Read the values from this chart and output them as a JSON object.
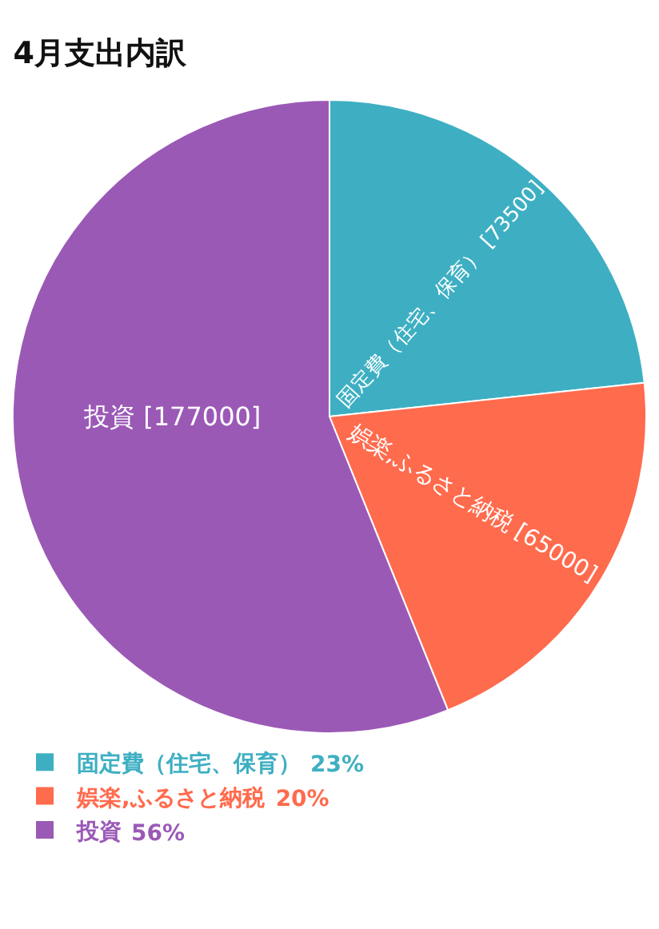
{
  "chart_data": {
    "type": "pie",
    "title": "4月支出内訳",
    "categories": [
      "固定費（住宅、保育）",
      "娯楽,ふるさと納税",
      "投資"
    ],
    "values": [
      73500,
      65000,
      177000
    ],
    "colors": [
      "#3eafc3",
      "#ff6b4d",
      "#9b59b6"
    ],
    "value_labels": [
      "[73500]",
      "[65000]",
      "[177000]"
    ],
    "data_labels": true,
    "annotations": [
      "23%",
      "20%",
      "56%"
    ],
    "legend": "bottom left"
  }
}
